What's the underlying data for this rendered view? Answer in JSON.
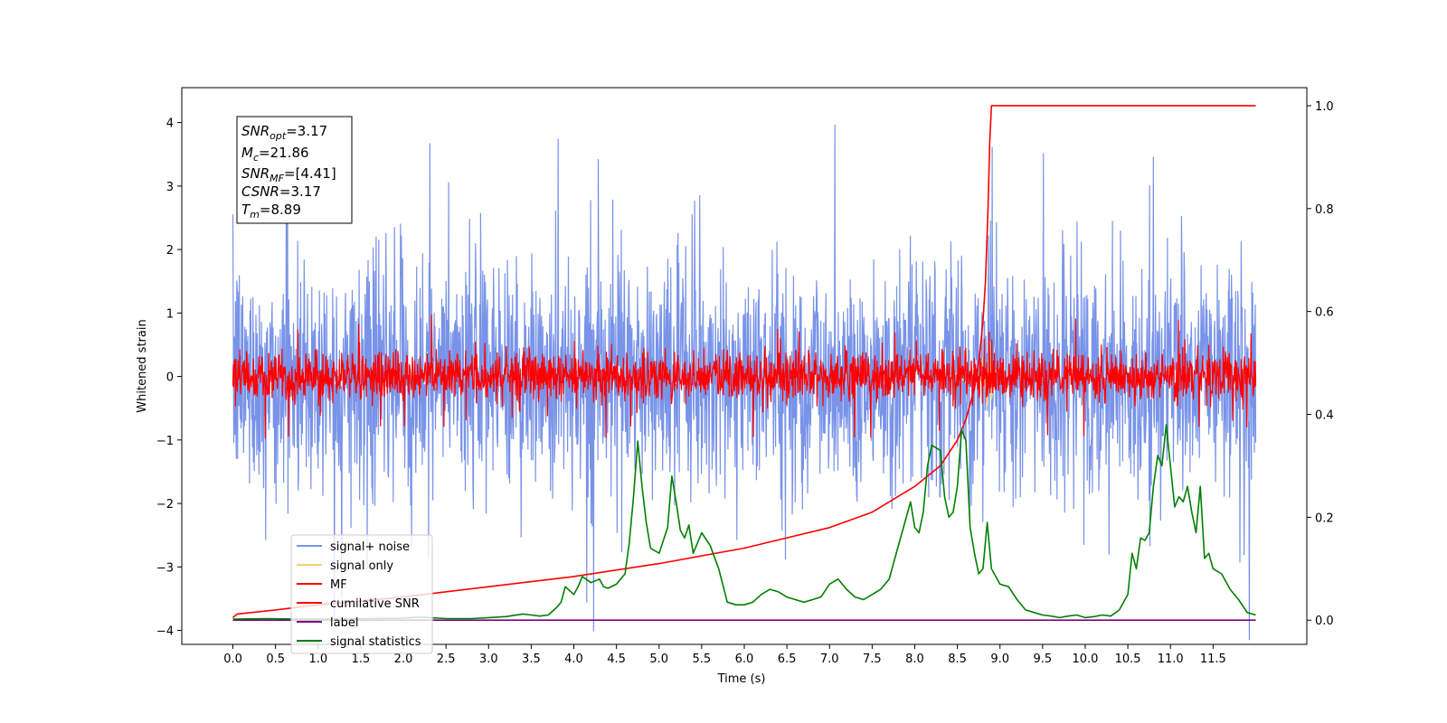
{
  "chart_data": {
    "type": "line",
    "xlabel": "Time (s)",
    "ylabel": "Whitened strain",
    "xlim": [
      -0.6,
      12.6
    ],
    "ylim_left": [
      -4.22,
      4.55
    ],
    "ylim_right": [
      -0.047,
      1.035
    ],
    "x_ticks": [
      "0.0",
      "0.5",
      "1.0",
      "1.5",
      "2.0",
      "2.5",
      "3.0",
      "3.5",
      "4.0",
      "4.5",
      "5.0",
      "5.5",
      "6.0",
      "6.5",
      "7.0",
      "7.5",
      "8.0",
      "8.5",
      "9.0",
      "9.5",
      "10.0",
      "10.5",
      "11.0",
      "11.5"
    ],
    "y_ticks_left": [
      "4",
      "3",
      "2",
      "1",
      "0",
      "−1",
      "−2",
      "−3",
      "−4"
    ],
    "y_ticks_right": [
      "1.0",
      "0.8",
      "0.6",
      "0.4",
      "0.2",
      "0.0"
    ],
    "annotation": {
      "snr_opt": {
        "base": "SNR",
        "sub": "opt",
        "value": "=3.17"
      },
      "mc": {
        "base": "M",
        "sub": "c",
        "value": "=21.86"
      },
      "snr_mf": {
        "base": "SNR",
        "sub": "MF",
        "value": "=[4.41]"
      },
      "csnr": {
        "base": "CSNR",
        "value": "=3.17"
      },
      "tm": {
        "base": "T",
        "sub": "m",
        "value": "=8.89"
      }
    },
    "legend": {
      "placement": "lower-left",
      "entries": [
        {
          "label": "signal+ noise",
          "color": "#7893e8"
        },
        {
          "label": "signal only",
          "color": "#f5cf7a"
        },
        {
          "label": "MF",
          "color": "#ff0000"
        },
        {
          "label": "cumilative SNR",
          "color": "#ff0000"
        },
        {
          "label": "label",
          "color": "#800080"
        },
        {
          "label": "signal statistics",
          "color": "#008000"
        }
      ]
    },
    "series": [
      {
        "name": "signal+ noise",
        "axis": "left",
        "color": "#7893e8",
        "style": "noise",
        "x_range": [
          0.0,
          12.0
        ],
        "amplitude": 1.15,
        "spikes_max": 4.15
      },
      {
        "name": "MF",
        "axis": "left",
        "color": "#ff0000",
        "style": "noise",
        "x_range": [
          0.0,
          12.0
        ],
        "amplitude": 0.25,
        "spikes_max": 1.0
      },
      {
        "name": "signal only",
        "axis": "left",
        "color": "#f5cf7a",
        "x": [
          8.4,
          8.5,
          8.6,
          8.7,
          8.75,
          8.8,
          8.85,
          8.88,
          8.9,
          8.95,
          9.0
        ],
        "y": [
          0.0,
          0.05,
          -0.1,
          0.15,
          -0.2,
          0.3,
          -0.45,
          0.55,
          -0.35,
          0.1,
          0.0
        ]
      },
      {
        "name": "cumilative SNR",
        "axis": "right",
        "color": "#ff0000",
        "x": [
          0.0,
          0.05,
          0.5,
          1.0,
          2.0,
          3.0,
          4.0,
          5.0,
          6.0,
          7.0,
          7.5,
          8.0,
          8.3,
          8.5,
          8.6,
          8.7,
          8.75,
          8.8,
          8.83,
          8.86,
          8.88,
          8.9,
          9.0,
          12.0
        ],
        "y": [
          0.005,
          0.012,
          0.02,
          0.03,
          0.045,
          0.065,
          0.085,
          0.11,
          0.14,
          0.18,
          0.21,
          0.26,
          0.3,
          0.35,
          0.39,
          0.45,
          0.5,
          0.58,
          0.66,
          0.8,
          0.93,
          1.0,
          1.0,
          1.0
        ]
      },
      {
        "name": "label",
        "axis": "right",
        "color": "#800080",
        "x": [
          0.0,
          12.0
        ],
        "y": [
          0.0,
          0.0
        ]
      },
      {
        "name": "signal statistics",
        "axis": "right",
        "color": "#008000",
        "x": [
          0.0,
          0.4,
          0.8,
          1.2,
          1.6,
          2.0,
          2.2,
          2.5,
          2.8,
          3.0,
          3.2,
          3.4,
          3.5,
          3.6,
          3.7,
          3.8,
          3.85,
          3.9,
          4.0,
          4.05,
          4.1,
          4.2,
          4.3,
          4.35,
          4.4,
          4.5,
          4.6,
          4.65,
          4.7,
          4.75,
          4.8,
          4.85,
          4.9,
          5.0,
          5.1,
          5.15,
          5.2,
          5.25,
          5.3,
          5.35,
          5.4,
          5.5,
          5.6,
          5.7,
          5.8,
          5.9,
          6.0,
          6.1,
          6.2,
          6.3,
          6.4,
          6.5,
          6.6,
          6.7,
          6.8,
          6.9,
          7.0,
          7.1,
          7.2,
          7.3,
          7.4,
          7.5,
          7.6,
          7.7,
          7.8,
          7.9,
          7.95,
          8.0,
          8.05,
          8.1,
          8.15,
          8.2,
          8.3,
          8.35,
          8.4,
          8.45,
          8.5,
          8.55,
          8.6,
          8.65,
          8.7,
          8.75,
          8.8,
          8.85,
          8.9,
          9.0,
          9.1,
          9.2,
          9.3,
          9.4,
          9.5,
          9.6,
          9.7,
          9.8,
          9.9,
          10.0,
          10.1,
          10.2,
          10.3,
          10.4,
          10.5,
          10.55,
          10.6,
          10.65,
          10.7,
          10.75,
          10.8,
          10.85,
          10.9,
          10.95,
          11.0,
          11.05,
          11.1,
          11.15,
          11.2,
          11.25,
          11.3,
          11.35,
          11.4,
          11.45,
          11.5,
          11.6,
          11.7,
          11.8,
          11.9,
          12.0
        ],
        "y": [
          0.002,
          0.003,
          0.002,
          0.002,
          0.003,
          0.004,
          0.006,
          0.003,
          0.003,
          0.005,
          0.007,
          0.012,
          0.01,
          0.008,
          0.01,
          0.025,
          0.035,
          0.065,
          0.05,
          0.065,
          0.085,
          0.073,
          0.08,
          0.065,
          0.062,
          0.07,
          0.09,
          0.15,
          0.24,
          0.348,
          0.26,
          0.19,
          0.14,
          0.13,
          0.18,
          0.28,
          0.23,
          0.175,
          0.16,
          0.185,
          0.13,
          0.17,
          0.145,
          0.1,
          0.035,
          0.03,
          0.03,
          0.035,
          0.05,
          0.06,
          0.055,
          0.045,
          0.04,
          0.035,
          0.04,
          0.045,
          0.07,
          0.08,
          0.06,
          0.045,
          0.04,
          0.05,
          0.06,
          0.08,
          0.14,
          0.2,
          0.23,
          0.18,
          0.17,
          0.21,
          0.3,
          0.34,
          0.33,
          0.24,
          0.2,
          0.21,
          0.26,
          0.37,
          0.35,
          0.18,
          0.13,
          0.09,
          0.1,
          0.19,
          0.1,
          0.07,
          0.065,
          0.04,
          0.02,
          0.015,
          0.01,
          0.008,
          0.005,
          0.008,
          0.01,
          0.005,
          0.007,
          0.01,
          0.008,
          0.02,
          0.05,
          0.13,
          0.1,
          0.16,
          0.155,
          0.17,
          0.26,
          0.32,
          0.3,
          0.38,
          0.3,
          0.22,
          0.24,
          0.23,
          0.26,
          0.21,
          0.17,
          0.26,
          0.12,
          0.13,
          0.1,
          0.09,
          0.06,
          0.04,
          0.015,
          0.01
        ]
      }
    ]
  }
}
